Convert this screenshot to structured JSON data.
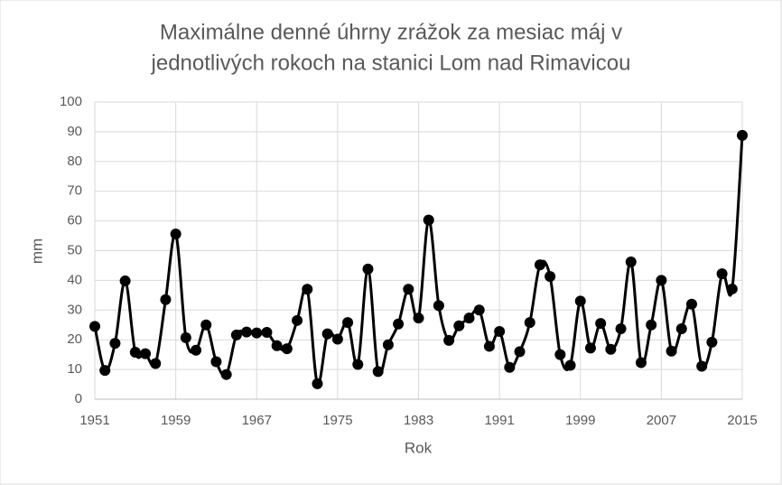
{
  "chart_data": {
    "type": "line",
    "title": [
      "Maximálne denné úhrny zrážok za mesiac máj v",
      "jednotlivých rokoch na stanici Lom nad Rimavicou"
    ],
    "x_label": "Rok",
    "y_label": "mm",
    "x": [
      1951,
      1952,
      1953,
      1954,
      1955,
      1956,
      1957,
      1958,
      1959,
      1960,
      1961,
      1962,
      1963,
      1964,
      1965,
      1966,
      1967,
      1968,
      1969,
      1970,
      1971,
      1972,
      1973,
      1974,
      1975,
      1976,
      1977,
      1978,
      1979,
      1980,
      1981,
      1982,
      1983,
      1984,
      1985,
      1986,
      1987,
      1988,
      1989,
      1990,
      1991,
      1992,
      1993,
      1994,
      1995,
      1996,
      1997,
      1998,
      1999,
      2000,
      2001,
      2002,
      2003,
      2004,
      2005,
      2006,
      2007,
      2008,
      2009,
      2010,
      2011,
      2012,
      2013,
      2014,
      2015
    ],
    "series": [
      {
        "name": "mm",
        "color": "#000000",
        "values": [
          24.5,
          9.7,
          18.8,
          39.8,
          15.8,
          15.3,
          12,
          33.5,
          55.6,
          20.7,
          16.5,
          25,
          12.6,
          8.3,
          21.6,
          22.6,
          22.3,
          22.5,
          18,
          17,
          26.5,
          37,
          5.2,
          22,
          20.2,
          25.8,
          11.7,
          43.8,
          9.3,
          18.3,
          25.3,
          37,
          27.3,
          60.3,
          31.5,
          19.8,
          24.7,
          27.3,
          30,
          17.8,
          22.8,
          10.7,
          16,
          25.8,
          45.2,
          41.3,
          15,
          11.4,
          33,
          17.2,
          25.5,
          16.8,
          23.7,
          46.2,
          12.3,
          25,
          40,
          16.2,
          23.7,
          32,
          11.1,
          19.2,
          42.2,
          37.1,
          88.8
        ]
      }
    ],
    "xlim": [
      1951,
      2015
    ],
    "xticks": [
      1951,
      1959,
      1967,
      1975,
      1983,
      1991,
      1999,
      2007,
      2015
    ],
    "ylim": [
      0,
      100
    ],
    "yticks": [
      0,
      10,
      20,
      30,
      40,
      50,
      60,
      70,
      80,
      90,
      100
    ],
    "grid": true,
    "smooth": true
  }
}
